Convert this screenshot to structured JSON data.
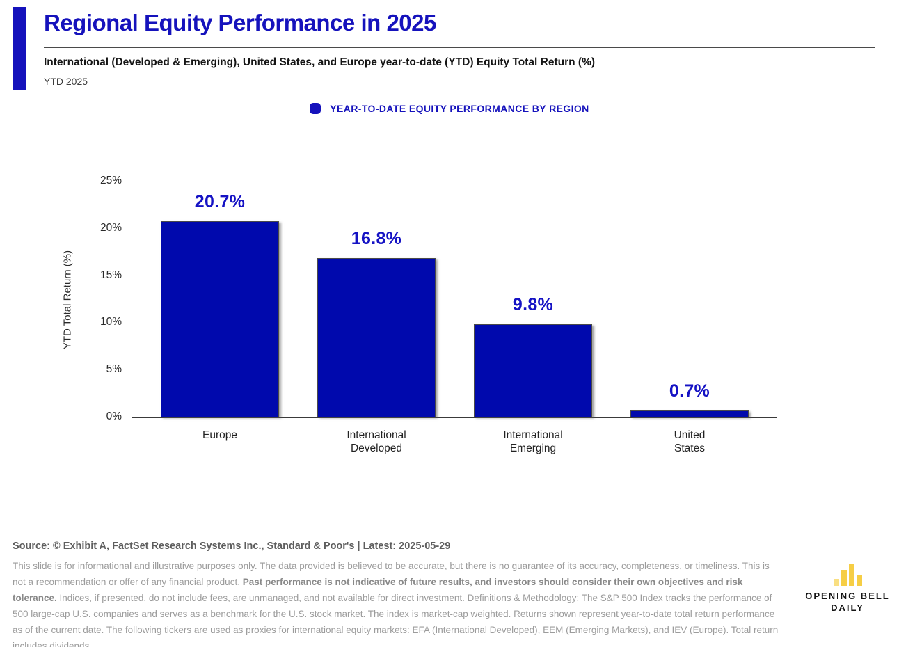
{
  "colors": {
    "brand_blue": "#1512BC",
    "bar_blue": "#0009AD",
    "axis_gray": "#3a3a3a",
    "disclaimer_gray": "#9c9c9c",
    "logo_gold": "#F6CE45"
  },
  "header": {
    "title": "Regional Equity Performance in 2025",
    "subtitle": "International (Developed & Emerging), United States, and Europe year-to-date (YTD) Equity Total Return (%)",
    "period_label": "YTD 2025"
  },
  "legend": {
    "label": "YEAR-TO-DATE EQUITY PERFORMANCE BY REGION"
  },
  "chart_data": {
    "type": "bar",
    "title": "YEAR-TO-DATE EQUITY PERFORMANCE BY REGION",
    "categories": [
      "Europe",
      "International Developed",
      "International Emerging",
      "United States"
    ],
    "category_lines": [
      [
        "Europe"
      ],
      [
        "International",
        "Developed"
      ],
      [
        "International",
        "Emerging"
      ],
      [
        "United",
        "States"
      ]
    ],
    "values": [
      20.7,
      16.8,
      9.8,
      0.7
    ],
    "value_labels": [
      "20.7%",
      "16.8%",
      "9.8%",
      "0.7%"
    ],
    "xlabel": "",
    "ylabel": "YTD Total Return (%)",
    "ylim": [
      0,
      25
    ],
    "yticks": [
      0,
      5,
      10,
      15,
      20,
      25
    ],
    "ytick_labels": [
      "0%",
      "5%",
      "10%",
      "15%",
      "20%",
      "25%"
    ],
    "grid": false,
    "legend_position": "top-center",
    "bar_color": "#0009AD"
  },
  "footer": {
    "source_prefix": "Source: © Exhibit A, FactSet Research Systems Inc., Standard & Poor's | ",
    "source_latest": "Latest: 2025-05-29",
    "disclaimer_before_bold": "This slide is for informational and illustrative purposes only. The data provided is believed to be accurate, but there is no guarantee of its accuracy, completeness, or timeliness. This is not a recommendation or offer of any financial product. ",
    "disclaimer_bold": "Past performance is not indicative of future results, and investors should consider their own objectives and risk tolerance.",
    "disclaimer_after_bold": " Indices, if presented, do not include fees, are unmanaged, and not available for direct investment. Definitions & Methodology: The S&P 500 Index tracks the performance of 500 large-cap U.S. companies and serves as a benchmark for the U.S. stock market. The index is market-cap weighted. Returns shown represent year-to-date total return performance as of the current date. The following tickers are used as proxies for international equity markets: EFA (International Developed), EEM (Emerging Markets), and IEV (Europe). Total return includes dividends."
  },
  "logo": {
    "line1": "OPENING BELL",
    "line2": "DAILY"
  }
}
